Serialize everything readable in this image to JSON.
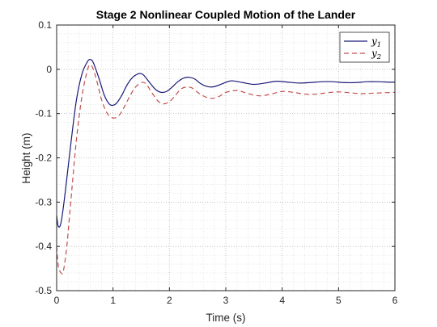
{
  "chart_data": {
    "type": "line",
    "title": "Stage 2 Nonlinear Coupled Motion of the Lander",
    "xlabel": "Time (s)",
    "ylabel": "Height (m)",
    "xlim": [
      0,
      6
    ],
    "ylim": [
      -0.5,
      0.1
    ],
    "xticks": [
      0,
      1,
      2,
      3,
      4,
      5,
      6
    ],
    "xtick_labels": [
      "0",
      "1",
      "2",
      "3",
      "4",
      "5",
      "6"
    ],
    "yticks": [
      -0.5,
      -0.4,
      -0.3,
      -0.2,
      -0.1,
      0,
      0.1
    ],
    "ytick_labels": [
      "-0.5",
      "-0.4",
      "-0.3",
      "-0.2",
      "-0.1",
      "0",
      "0.1"
    ],
    "grid": "major and minor, dotted",
    "legend_position": "top-right",
    "series": [
      {
        "name": "y1",
        "legend_main": "y",
        "legend_sub": "1",
        "color": "#1a1a7a",
        "dash": "solid",
        "x": [
          0,
          0.03,
          0.08,
          0.15,
          0.25,
          0.35,
          0.45,
          0.55,
          0.6,
          0.65,
          0.75,
          0.85,
          0.95,
          1.05,
          1.15,
          1.25,
          1.35,
          1.45,
          1.5,
          1.55,
          1.65,
          1.75,
          1.85,
          1.95,
          2.05,
          2.15,
          2.25,
          2.35,
          2.45,
          2.55,
          2.65,
          2.75,
          2.85,
          2.95,
          3.1,
          3.3,
          3.5,
          3.7,
          3.9,
          4.1,
          4.3,
          4.5,
          4.7,
          4.9,
          5.1,
          5.3,
          5.5,
          5.7,
          5.9,
          6.0
        ],
        "y": [
          -0.33,
          -0.355,
          -0.345,
          -0.28,
          -0.17,
          -0.07,
          -0.01,
          0.018,
          0.022,
          0.015,
          -0.02,
          -0.06,
          -0.08,
          -0.078,
          -0.06,
          -0.035,
          -0.018,
          -0.01,
          -0.01,
          -0.014,
          -0.03,
          -0.045,
          -0.052,
          -0.05,
          -0.04,
          -0.028,
          -0.02,
          -0.018,
          -0.022,
          -0.032,
          -0.038,
          -0.04,
          -0.037,
          -0.032,
          -0.026,
          -0.03,
          -0.034,
          -0.031,
          -0.027,
          -0.029,
          -0.031,
          -0.03,
          -0.028,
          -0.028,
          -0.03,
          -0.03,
          -0.028,
          -0.028,
          -0.029,
          -0.029
        ]
      },
      {
        "name": "y2",
        "legend_main": "y",
        "legend_sub": "2",
        "color": "#c0504d",
        "dash": "dashed",
        "x": [
          0,
          0.03,
          0.08,
          0.12,
          0.18,
          0.25,
          0.35,
          0.45,
          0.55,
          0.6,
          0.65,
          0.72,
          0.8,
          0.9,
          1.0,
          1.1,
          1.2,
          1.3,
          1.4,
          1.5,
          1.55,
          1.6,
          1.7,
          1.8,
          1.9,
          2.0,
          2.1,
          2.2,
          2.3,
          2.4,
          2.5,
          2.6,
          2.7,
          2.8,
          2.9,
          3.0,
          3.2,
          3.4,
          3.6,
          3.8,
          4.0,
          4.2,
          4.4,
          4.6,
          4.8,
          5.0,
          5.2,
          5.4,
          5.6,
          5.8,
          6.0
        ],
        "y": [
          -0.4,
          -0.445,
          -0.46,
          -0.455,
          -0.4,
          -0.3,
          -0.16,
          -0.06,
          0.0,
          0.01,
          0.0,
          -0.03,
          -0.07,
          -0.1,
          -0.11,
          -0.105,
          -0.085,
          -0.06,
          -0.04,
          -0.03,
          -0.03,
          -0.035,
          -0.055,
          -0.072,
          -0.078,
          -0.073,
          -0.06,
          -0.045,
          -0.04,
          -0.042,
          -0.052,
          -0.06,
          -0.065,
          -0.065,
          -0.06,
          -0.052,
          -0.048,
          -0.055,
          -0.06,
          -0.056,
          -0.05,
          -0.052,
          -0.056,
          -0.056,
          -0.053,
          -0.051,
          -0.053,
          -0.055,
          -0.054,
          -0.053,
          -0.052
        ]
      }
    ]
  }
}
